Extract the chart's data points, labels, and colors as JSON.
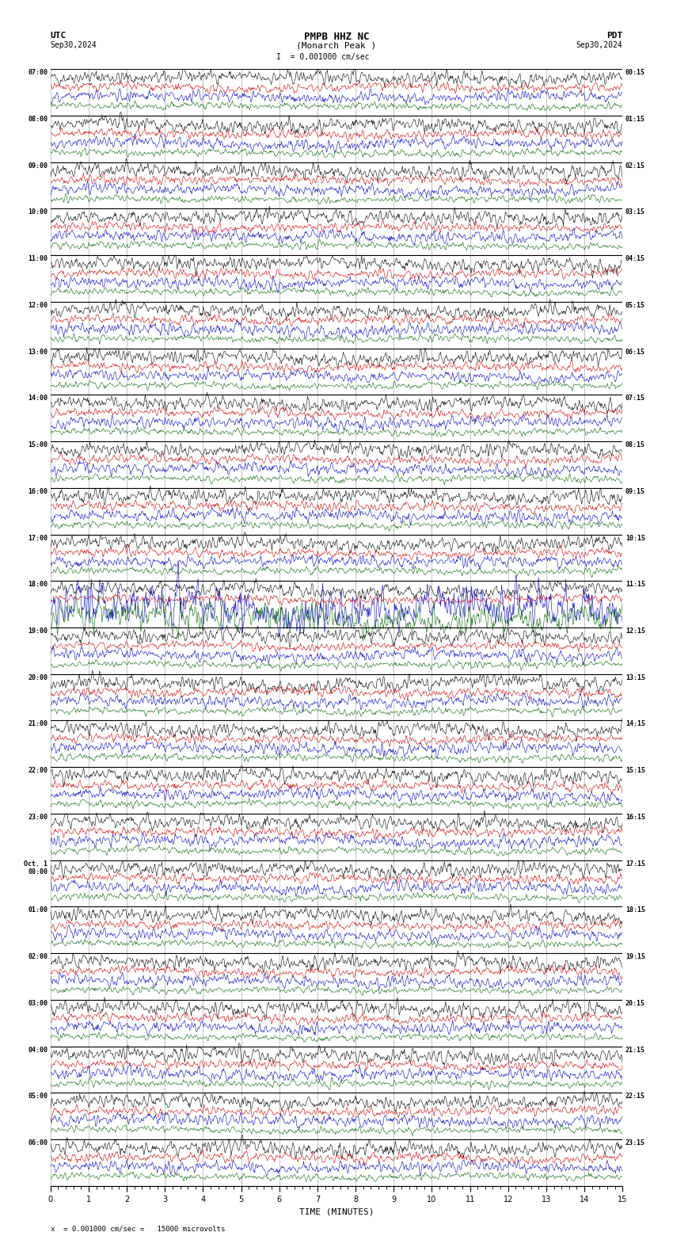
{
  "title_line1": "PMPB HHZ NC",
  "title_line2": "(Monarch Peak )",
  "scale_label": "= 0.001000 cm/sec",
  "utc_label": "UTC",
  "utc_date": "Sep30,2024",
  "pdt_label": "PDT",
  "pdt_date": "Sep30,2024",
  "bottom_label": "x  = 0.001000 cm/sec =   15000 microvolts",
  "xlabel": "TIME (MINUTES)",
  "left_times": [
    "07:00",
    "08:00",
    "09:00",
    "10:00",
    "11:00",
    "12:00",
    "13:00",
    "14:00",
    "15:00",
    "16:00",
    "17:00",
    "18:00",
    "19:00",
    "20:00",
    "21:00",
    "22:00",
    "23:00",
    "Oct. 1\n00:00",
    "01:00",
    "02:00",
    "03:00",
    "04:00",
    "05:00",
    "06:00"
  ],
  "right_times": [
    "00:15",
    "01:15",
    "02:15",
    "03:15",
    "04:15",
    "05:15",
    "06:15",
    "07:15",
    "08:15",
    "09:15",
    "10:15",
    "11:15",
    "12:15",
    "13:15",
    "14:15",
    "15:15",
    "16:15",
    "17:15",
    "18:15",
    "19:15",
    "20:15",
    "21:15",
    "22:15",
    "23:15"
  ],
  "n_rows": 24,
  "n_traces_per_row": 4,
  "trace_colors": [
    "#000000",
    "#cc0000",
    "#0000cc",
    "#006600"
  ],
  "minutes_per_row": 15,
  "background_color": "#ffffff",
  "grid_color": "#aaaaaa",
  "line_width": 0.4,
  "noise_scale": [
    0.12,
    0.08,
    0.1,
    0.06
  ],
  "special_noise_row": 11,
  "special_noise_scale": [
    0.12,
    0.08,
    0.35,
    0.25
  ]
}
